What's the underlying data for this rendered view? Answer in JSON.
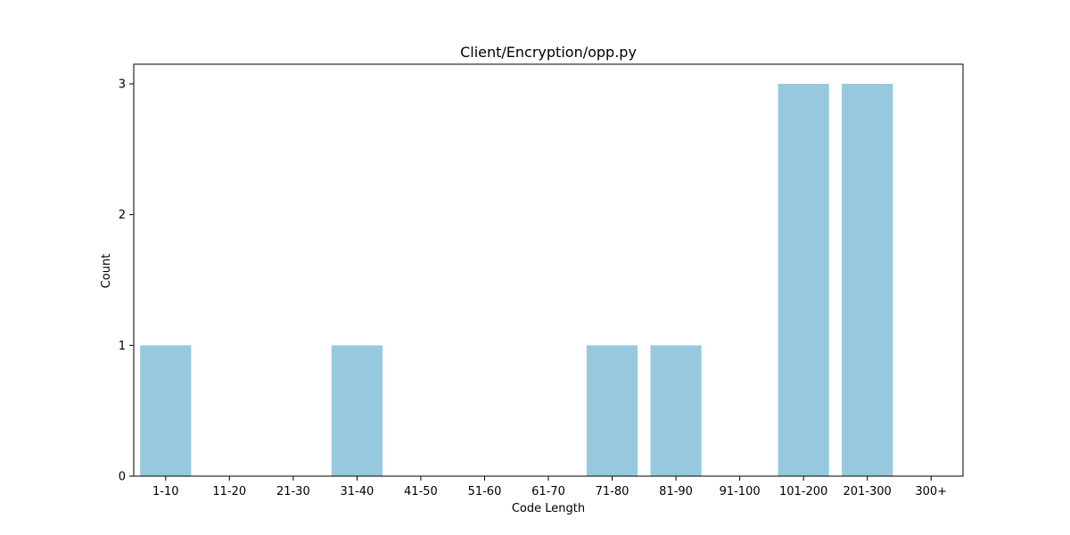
{
  "chart_data": {
    "type": "bar",
    "title": "Client/Encryption/opp.py",
    "xlabel": "Code Length",
    "ylabel": "Count",
    "categories": [
      "1-10",
      "11-20",
      "21-30",
      "31-40",
      "41-50",
      "51-60",
      "61-70",
      "71-80",
      "81-90",
      "91-100",
      "101-200",
      "201-300",
      "300+"
    ],
    "values": [
      1,
      0,
      0,
      1,
      0,
      0,
      0,
      1,
      1,
      0,
      3,
      3,
      0
    ],
    "yticks": [
      0,
      1,
      2,
      3
    ],
    "ylim": [
      0,
      3.15
    ],
    "grid": false,
    "legend": "none",
    "bar_color": "#96c9df"
  }
}
